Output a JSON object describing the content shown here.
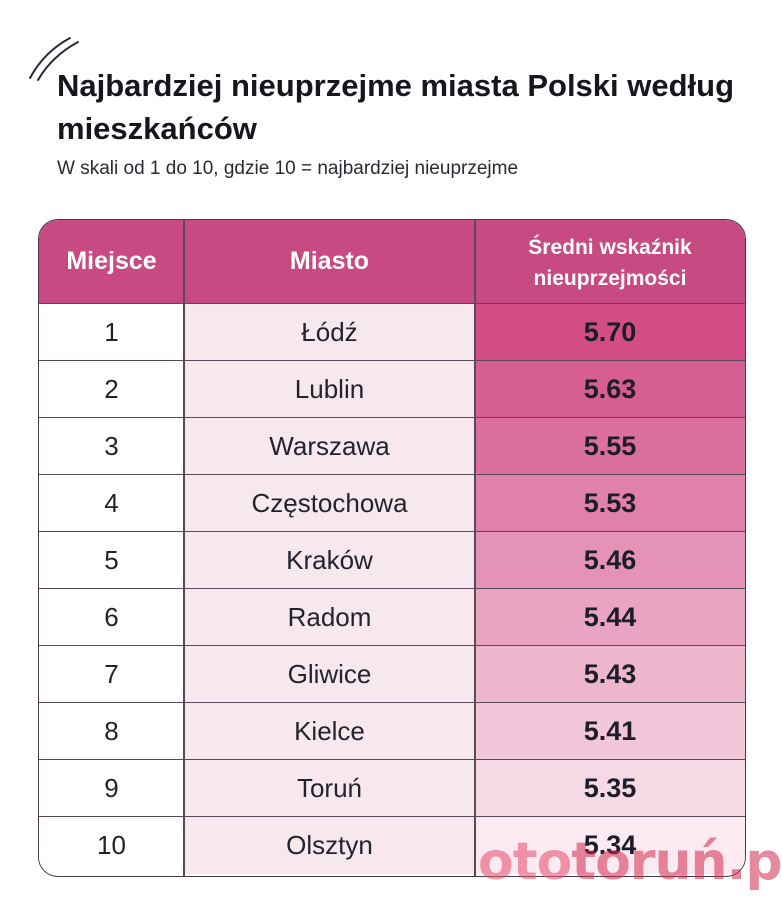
{
  "title": "Najbardziej nieuprzejme miasta Polski według mieszkańców",
  "subtitle": "W skali od 1 do 10, gdzie 10 = najbardziej nieuprzejme",
  "colors": {
    "header": "#c84a82",
    "score_high": "#d24d86",
    "score_low": "#fbeaf1",
    "city_column": "#f7e8ee"
  },
  "chart_data": {
    "type": "table",
    "columns": [
      "Miejsce",
      "Miasto",
      "Średni wskaźnik nieuprzejmości"
    ],
    "rows": [
      {
        "rank": "1",
        "city": "Łódź",
        "score": "5.70"
      },
      {
        "rank": "2",
        "city": "Lublin",
        "score": "5.63"
      },
      {
        "rank": "3",
        "city": "Warszawa",
        "score": "5.55"
      },
      {
        "rank": "4",
        "city": "Częstochowa",
        "score": "5.53"
      },
      {
        "rank": "5",
        "city": "Kraków",
        "score": "5.46"
      },
      {
        "rank": "6",
        "city": "Radom",
        "score": "5.44"
      },
      {
        "rank": "7",
        "city": "Gliwice",
        "score": "5.43"
      },
      {
        "rank": "8",
        "city": "Kielce",
        "score": "5.41"
      },
      {
        "rank": "9",
        "city": "Toruń",
        "score": "5.35"
      },
      {
        "rank": "10",
        "city": "Olsztyn",
        "score": "5.34"
      }
    ]
  },
  "watermark": {
    "part1": "oto",
    "part2": "toruń.pl"
  }
}
